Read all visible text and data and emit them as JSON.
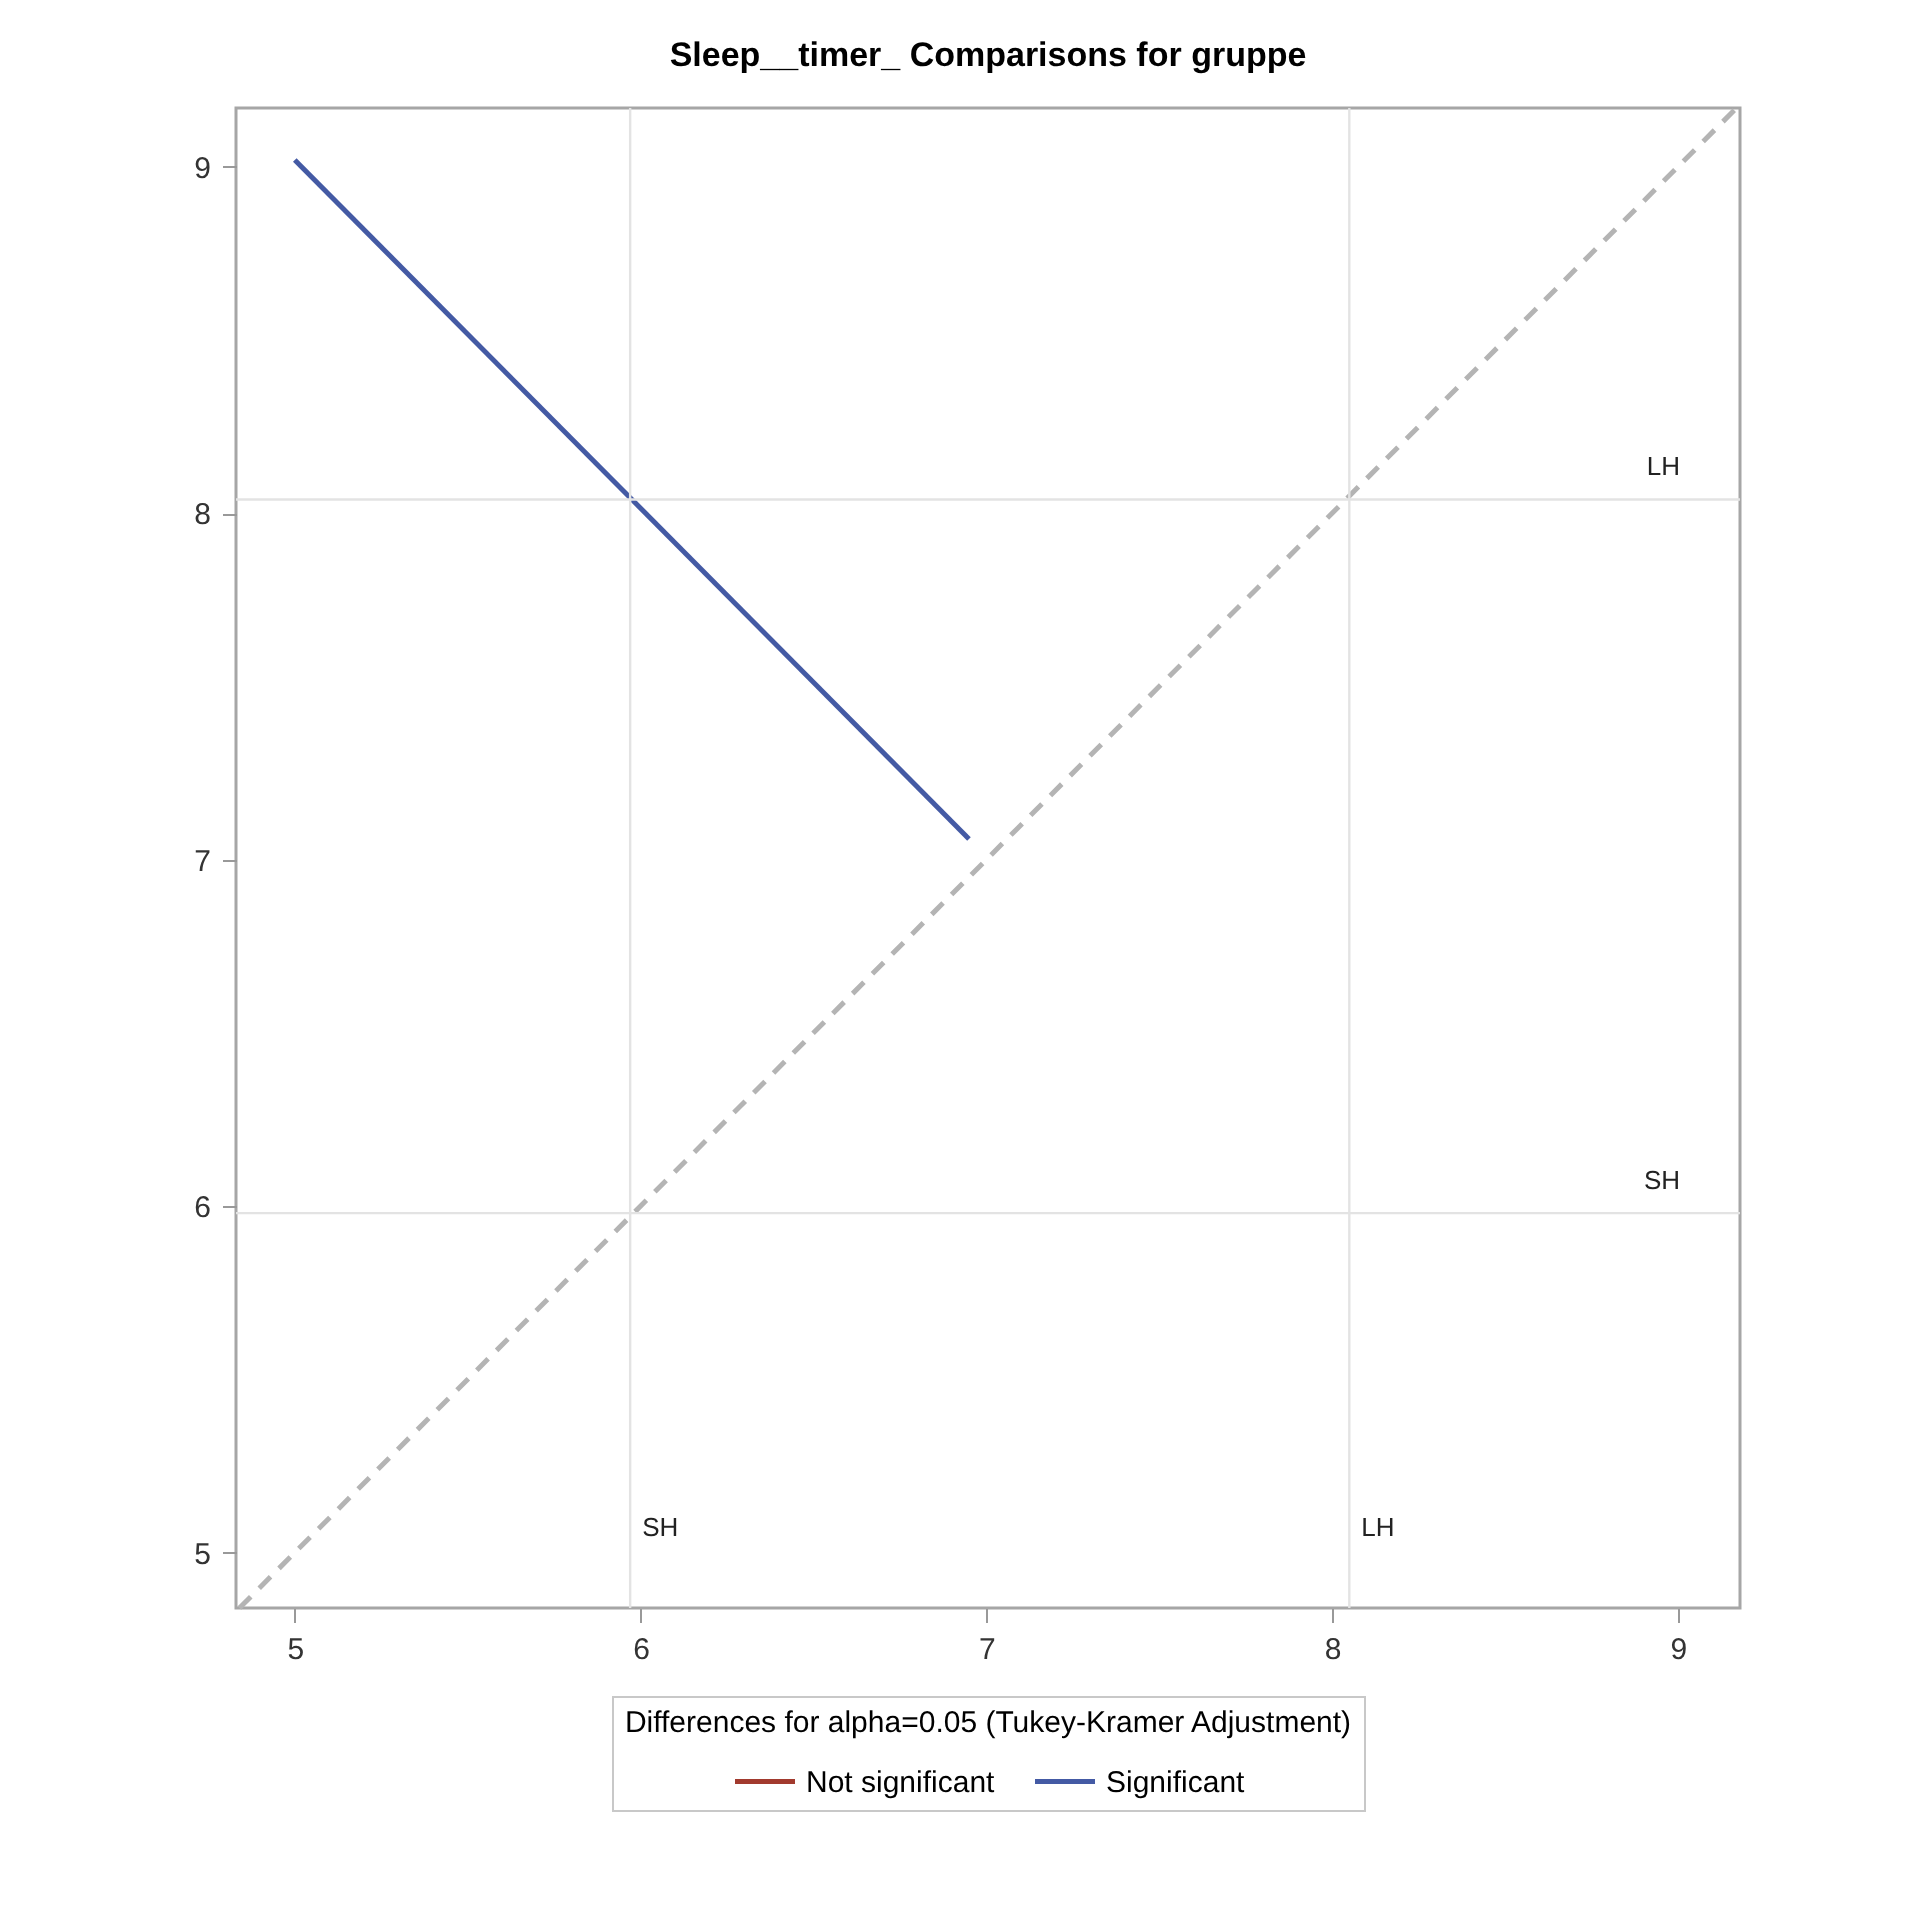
{
  "chart_data": {
    "type": "line",
    "title": "Sleep__timer_ Comparisons for gruppe",
    "xlim": [
      4.83,
      9.18
    ],
    "ylim": [
      4.84,
      9.17
    ],
    "xticks": [
      5,
      6,
      7,
      8,
      9
    ],
    "yticks": [
      5,
      6,
      7,
      8,
      9
    ],
    "legend_title": "Differences for alpha=0.05 (Tukey-Kramer Adjustment)",
    "legend": "bottom",
    "marker": "none",
    "series": [
      {
        "color": "#b4b4b4",
        "line_style": "dashed",
        "x": [
          4.84,
          9.17
        ],
        "values": [
          4.84,
          9.17
        ]
      },
      {
        "name": "Not significant",
        "color": "#a23a2e"
      },
      {
        "name": "Significant",
        "color": "#445aa4",
        "x": [
          5.0,
          6.95
        ],
        "values": [
          9.02,
          7.06
        ]
      }
    ],
    "ref_lines": [
      {
        "axis": "x",
        "value": 5.97,
        "label": "SH",
        "color": "#e3e3e3"
      },
      {
        "axis": "x",
        "value": 8.05,
        "label": "LH",
        "color": "#e3e3e3"
      },
      {
        "axis": "y",
        "value": 8.04,
        "label": "LH",
        "color": "#e3e3e3"
      },
      {
        "axis": "y",
        "value": 5.98,
        "label": "SH",
        "color": "#e3e3e3"
      }
    ]
  }
}
